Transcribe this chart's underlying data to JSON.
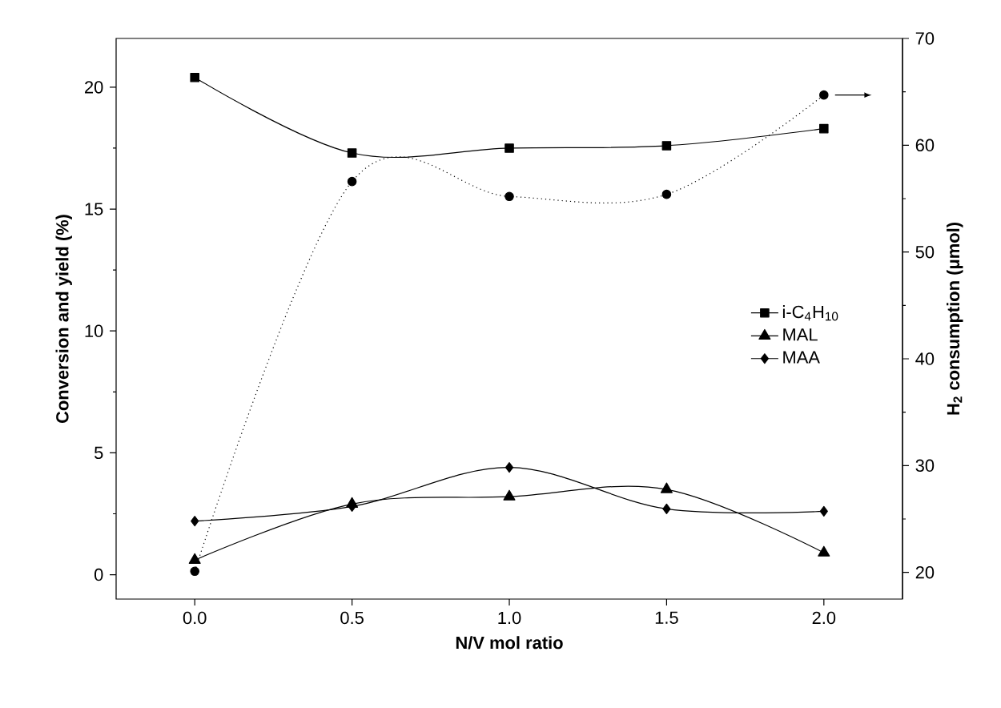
{
  "chart_data": {
    "type": "line",
    "xlabel": "N/V mol ratio",
    "ylabel": "Conversion and yield (%)",
    "y2label": "H$_{2}$ consumption (μmol)",
    "x": [
      0,
      0.5,
      1.0,
      1.5,
      2.0
    ],
    "xlim": [
      -0.25,
      2.25
    ],
    "xticks": [
      {
        "value": 0,
        "label": "0.0"
      },
      {
        "value": 0.5,
        "label": "0.5"
      },
      {
        "value": 1.0,
        "label": "1.0"
      },
      {
        "value": 1.5,
        "label": "1.5"
      },
      {
        "value": 2.0,
        "label": "2.0"
      }
    ],
    "ylim": [
      -1,
      22
    ],
    "yticks": [
      0,
      5,
      10,
      15,
      20
    ],
    "y2lim": [
      17.5,
      70
    ],
    "y2ticks": [
      20,
      30,
      40,
      50,
      60,
      70
    ],
    "legend": "right",
    "grid": false,
    "line_style": "solid",
    "series": [
      {
        "name": "i-C$_{4}$H$_{10}$",
        "color": "#000000",
        "marker": "square",
        "values": [
          20.4,
          17.3,
          17.5,
          17.6,
          18.3
        ]
      },
      {
        "name": "MAL",
        "color": "#000000",
        "marker": "triangle",
        "values": [
          0.6,
          2.9,
          3.2,
          3.5,
          0.9
        ]
      },
      {
        "name": "MAA",
        "color": "#000000",
        "marker": "diamond",
        "values": [
          2.2,
          2.8,
          4.4,
          2.7,
          2.6
        ]
      },
      {
        "color": "#000000",
        "marker": "circle",
        "line_style": "dotted",
        "axis": "y2",
        "values": [
          20.1,
          56.6,
          55.2,
          55.4,
          64.7
        ]
      }
    ]
  }
}
